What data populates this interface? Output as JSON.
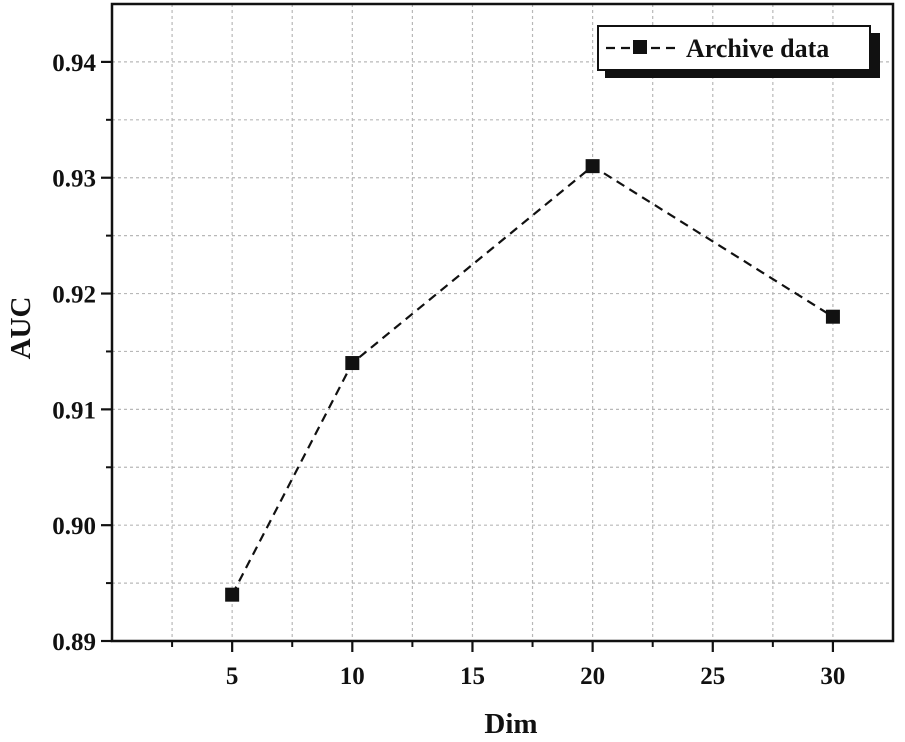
{
  "chart_data": {
    "type": "line",
    "title": "",
    "xlabel": "Dim",
    "ylabel": "AUC",
    "x": [
      5,
      10,
      20,
      30
    ],
    "series": [
      {
        "name": "Archive data",
        "values": [
          0.894,
          0.914,
          0.931,
          0.918
        ],
        "color": "#111111",
        "line_style": "dashed",
        "marker": "square"
      }
    ],
    "xlim": [
      0,
      32.5
    ],
    "ylim": [
      0.89,
      0.945
    ],
    "x_ticks": [
      5,
      10,
      15,
      20,
      25,
      30
    ],
    "x_tick_labels": [
      "5",
      "10",
      "15",
      "20",
      "25",
      "30"
    ],
    "y_ticks": [
      0.89,
      0.9,
      0.91,
      0.92,
      0.93,
      0.94
    ],
    "y_tick_labels": [
      "0.89",
      "0.90",
      "0.91",
      "0.92",
      "0.93",
      "0.94"
    ],
    "grid": true,
    "legend_position": "top-right"
  }
}
